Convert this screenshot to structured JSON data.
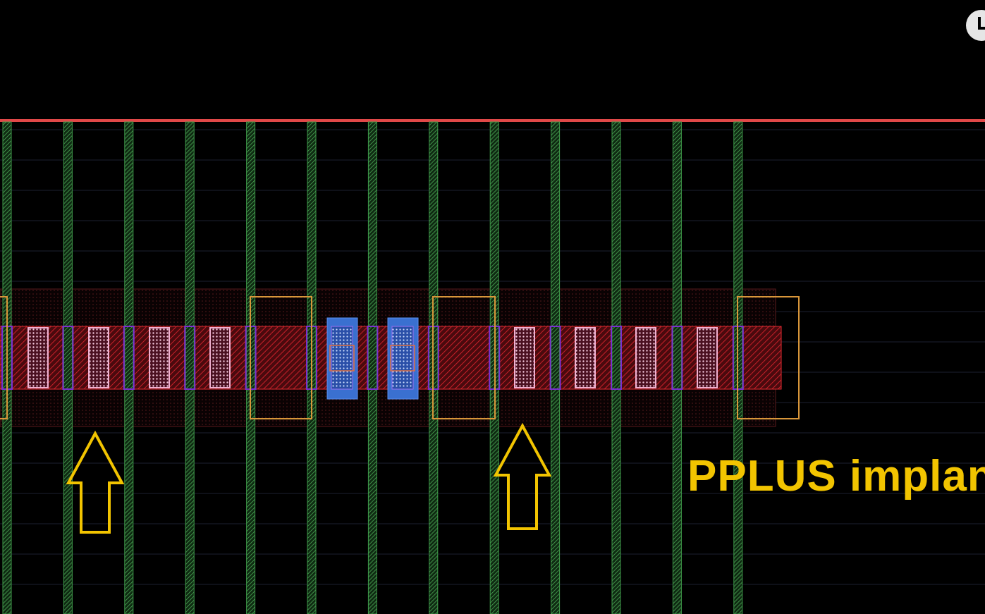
{
  "annotation": {
    "text": "PPLUS implant",
    "color": "#f2c400"
  },
  "colors": {
    "background": "#000000",
    "poly": "#3f9a4a",
    "diffusion": "#d0202a",
    "implant_outline": "#d8963a",
    "metal": "#3a70d0",
    "contact": "#f0b0d0",
    "arrow": "#f2c400",
    "top_rail": "#e04848"
  },
  "icons": {
    "corner_button": "clock-icon",
    "arrow": "up-arrow-icon"
  }
}
